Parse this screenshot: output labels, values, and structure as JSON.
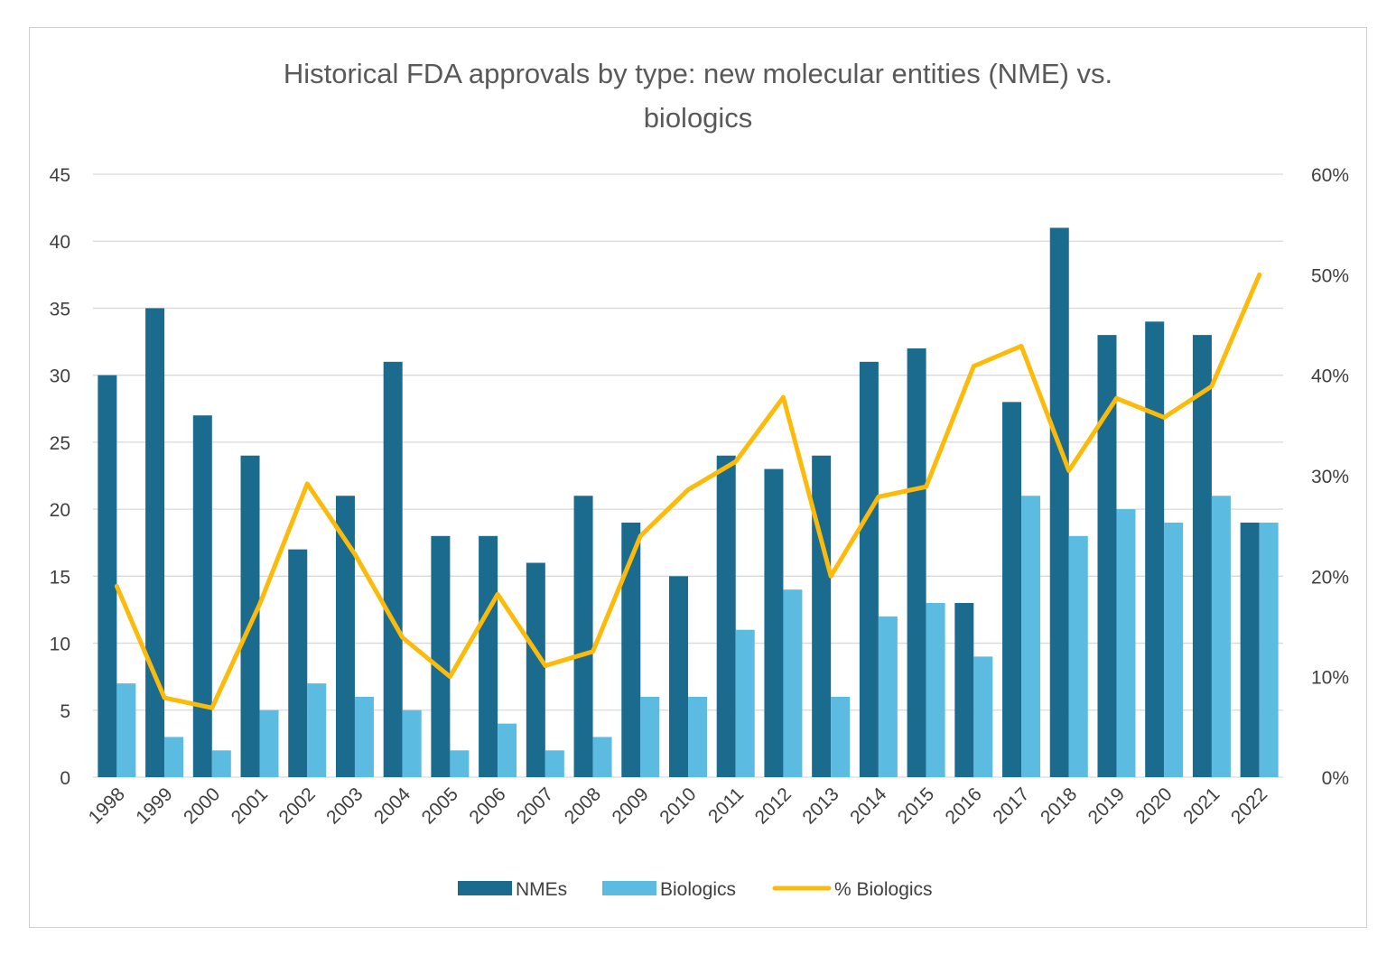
{
  "chart_data": {
    "type": "bar",
    "title": "Historical FDA approvals by type: new molecular entities (NME) vs. biologics",
    "title_lines": [
      "Historical FDA approvals by type: new molecular entities (NME) vs.",
      "biologics"
    ],
    "categories": [
      "1998",
      "1999",
      "2000",
      "2001",
      "2002",
      "2003",
      "2004",
      "2005",
      "2006",
      "2007",
      "2008",
      "2009",
      "2010",
      "2011",
      "2012",
      "2013",
      "2014",
      "2015",
      "2016",
      "2017",
      "2018",
      "2019",
      "2020",
      "2021",
      "2022"
    ],
    "series": [
      {
        "name": "NMEs",
        "type": "bar",
        "axis": "left",
        "color": "#1b6b8f",
        "values": [
          30,
          35,
          27,
          24,
          17,
          21,
          31,
          18,
          18,
          16,
          21,
          19,
          15,
          24,
          23,
          24,
          31,
          32,
          13,
          28,
          41,
          33,
          34,
          33,
          19
        ]
      },
      {
        "name": "Biologics",
        "type": "bar",
        "axis": "left",
        "color": "#5bbbe0",
        "values": [
          7,
          3,
          2,
          5,
          7,
          6,
          5,
          2,
          4,
          2,
          3,
          6,
          6,
          11,
          14,
          6,
          12,
          13,
          9,
          21,
          18,
          20,
          19,
          21,
          19
        ]
      },
      {
        "name": "% Biologics",
        "type": "line",
        "axis": "right",
        "color": "#fcbb0a",
        "values": [
          0.19,
          0.079,
          0.069,
          0.172,
          0.292,
          0.222,
          0.139,
          0.1,
          0.182,
          0.111,
          0.125,
          0.24,
          0.286,
          0.314,
          0.378,
          0.2,
          0.279,
          0.289,
          0.409,
          0.429,
          0.305,
          0.377,
          0.358,
          0.389,
          0.5
        ]
      }
    ],
    "y_left": {
      "min": 0,
      "max": 45,
      "ticks": [
        "0",
        "5",
        "10",
        "15",
        "20",
        "25",
        "30",
        "35",
        "40",
        "45"
      ]
    },
    "y_right": {
      "min": 0,
      "max": 0.6,
      "ticks": [
        "0%",
        "10%",
        "20%",
        "30%",
        "40%",
        "50%",
        "60%"
      ]
    },
    "grid": true,
    "legend_position": "bottom"
  }
}
